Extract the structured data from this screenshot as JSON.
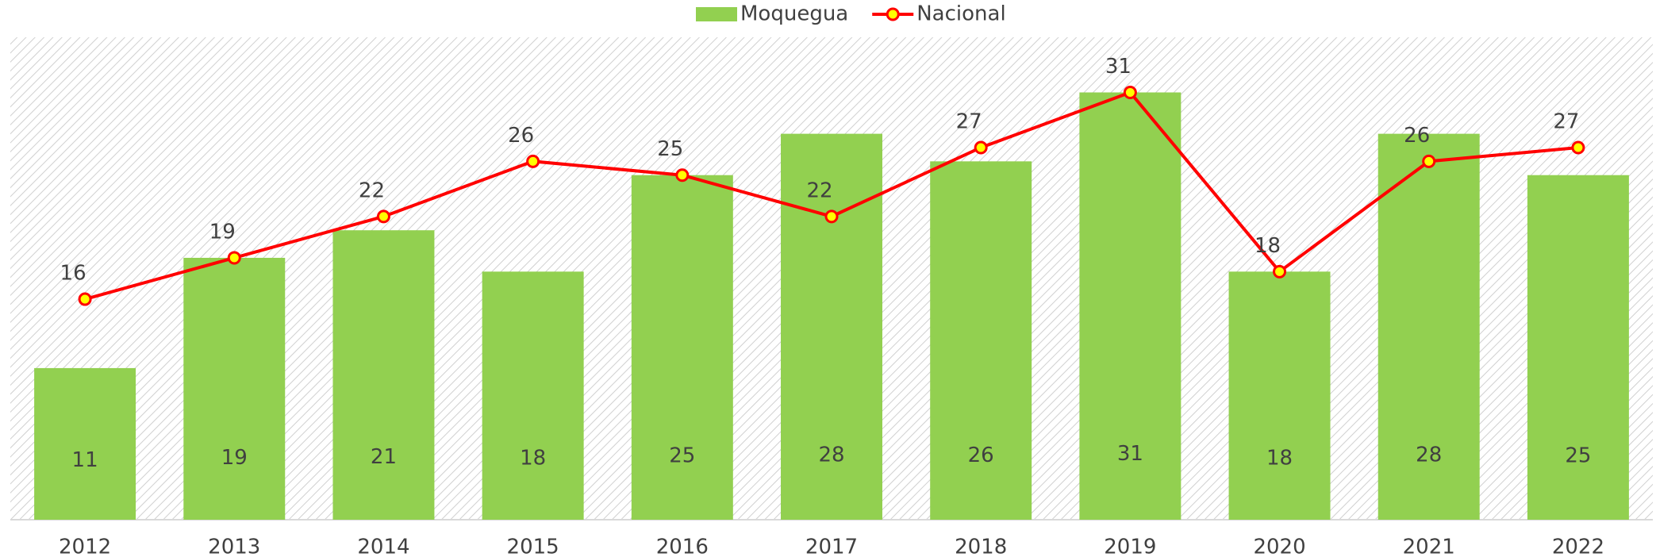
{
  "chart_data": {
    "type": "bar_line",
    "categories": [
      "2012",
      "2013",
      "2014",
      "2015",
      "2016",
      "2017",
      "2018",
      "2019",
      "2020",
      "2021",
      "2022"
    ],
    "series": [
      {
        "name": "Moquegua",
        "type": "bar",
        "color": "#92d050",
        "values": [
          11,
          19,
          21,
          18,
          25,
          28,
          26,
          31,
          18,
          28,
          25
        ]
      },
      {
        "name": "Nacional",
        "type": "line",
        "color": "#ff0000",
        "marker_color": "#ffff00",
        "values": [
          16,
          19,
          22,
          26,
          25,
          22,
          27,
          31,
          18,
          26,
          27
        ]
      }
    ],
    "ylim": [
      0,
      35
    ],
    "legend": "top"
  }
}
